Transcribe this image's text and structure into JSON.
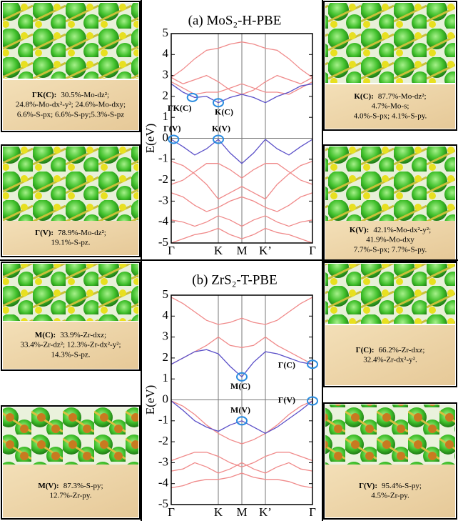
{
  "chart_data": [
    {
      "type": "line",
      "title": "(a) MoS₂-H-PBE",
      "y_label": "E(eV)",
      "x": [
        0,
        0.25,
        0.5,
        0.75,
        1,
        1.25,
        1.5,
        1.75,
        2,
        2.25,
        2.5,
        2.75,
        3
      ],
      "xlim": [
        0,
        3
      ],
      "xticks": [
        {
          "value": 0,
          "label": "Γ"
        },
        {
          "value": 1,
          "label": "K"
        },
        {
          "value": 1.5,
          "label": "M"
        },
        {
          "value": 2,
          "label": "K’"
        },
        {
          "value": 3,
          "label": "Γ"
        }
      ],
      "ylim": [
        -5,
        5
      ],
      "yticks": [
        -5,
        -4,
        -3,
        -2,
        -1,
        0,
        1,
        2,
        3,
        4,
        5
      ],
      "series": [
        {
          "color": "#f08a8a",
          "values": [
            2.9,
            3.3,
            3.8,
            4.2,
            4.3,
            4.5,
            4.6,
            4.5,
            4.3,
            4.2,
            3.8,
            3.3,
            2.9
          ]
        },
        {
          "color": "#f08a8a",
          "values": [
            2.9,
            2.6,
            2.8,
            3.0,
            2.7,
            2.3,
            2.1,
            2.3,
            2.7,
            3.0,
            2.8,
            2.6,
            2.9
          ]
        },
        {
          "color": "#f08a8a",
          "values": [
            2.7,
            2.4,
            2.1,
            2.2,
            2.2,
            2.4,
            2.6,
            2.4,
            2.2,
            2.2,
            2.1,
            2.4,
            2.7
          ]
        },
        {
          "color": "#f08a8a",
          "values": [
            -1.1,
            -1.3,
            -1.7,
            -2.2,
            -2.9,
            -2.6,
            -2.3,
            -2.6,
            -2.9,
            -2.2,
            -1.7,
            -1.3,
            -1.1
          ]
        },
        {
          "color": "#f08a8a",
          "values": [
            -2.2,
            -2.0,
            -1.6,
            -1.2,
            -1.2,
            -1.5,
            -1.9,
            -1.5,
            -1.2,
            -1.2,
            -1.6,
            -2.0,
            -2.2
          ]
        },
        {
          "color": "#f08a8a",
          "values": [
            -2.6,
            -2.8,
            -3.2,
            -3.5,
            -3.3,
            -3.0,
            -2.8,
            -3.0,
            -3.3,
            -3.5,
            -3.2,
            -2.8,
            -2.6
          ]
        },
        {
          "color": "#f08a8a",
          "values": [
            -3.9,
            -4.0,
            -4.2,
            -4.0,
            -3.7,
            -3.9,
            -4.2,
            -3.9,
            -3.7,
            -4.0,
            -4.2,
            -4.0,
            -3.9
          ]
        },
        {
          "color": "#f08a8a",
          "values": [
            -5,
            -4.8,
            -4.6,
            -4.5,
            -4.3,
            -4.6,
            -4.8,
            -4.6,
            -4.3,
            -4.5,
            -4.6,
            -4.8,
            -5
          ]
        },
        {
          "color": "#5a4fc8",
          "values": [
            2.6,
            2.2,
            1.95,
            2.0,
            1.7,
            1.95,
            2.1,
            1.95,
            1.7,
            2.0,
            2.2,
            2.5,
            2.6
          ]
        },
        {
          "color": "#5a4fc8",
          "values": [
            -0.05,
            -0.4,
            -0.8,
            -0.5,
            -0.05,
            -0.7,
            -1.2,
            -0.7,
            -0.05,
            -0.5,
            -0.8,
            -0.4,
            -0.05
          ]
        }
      ],
      "annotations": [
        {
          "text": "ΓK(C)",
          "x": 0.45,
          "y": 1.95
        },
        {
          "text": "K(C)",
          "x": 1,
          "y": 1.7
        },
        {
          "text": "Γ(V)",
          "x": 0.05,
          "y": -0.05
        },
        {
          "text": "K(V)",
          "x": 1,
          "y": -0.05
        }
      ]
    },
    {
      "type": "line",
      "title": "(b) ZrS₂-T-PBE",
      "y_label": "E(eV)",
      "x": [
        0,
        0.25,
        0.5,
        0.75,
        1,
        1.25,
        1.5,
        1.75,
        2,
        2.25,
        2.5,
        2.75,
        3
      ],
      "xlim": [
        0,
        3
      ],
      "xticks": [
        {
          "value": 0,
          "label": "Γ"
        },
        {
          "value": 1,
          "label": "K"
        },
        {
          "value": 1.5,
          "label": "M"
        },
        {
          "value": 2,
          "label": "K’"
        },
        {
          "value": 3,
          "label": "Γ"
        }
      ],
      "ylim": [
        -5,
        5
      ],
      "yticks": [
        -5,
        -4,
        -3,
        -2,
        -1,
        0,
        1,
        2,
        3,
        4,
        5
      ],
      "series": [
        {
          "color": "#f08a8a",
          "values": [
            4.9,
            4.6,
            4.2,
            3.8,
            3.6,
            3.7,
            3.9,
            3.7,
            3.6,
            3.8,
            4.2,
            4.6,
            4.9
          ]
        },
        {
          "color": "#f08a8a",
          "values": [
            1.7,
            2.0,
            2.3,
            2.6,
            3.0,
            2.6,
            2.5,
            2.6,
            3.0,
            2.6,
            2.3,
            2.0,
            1.7
          ]
        },
        {
          "color": "#f08a8a",
          "values": [
            -0.05,
            -0.3,
            -0.7,
            -1.2,
            -1.6,
            -1.9,
            -2.1,
            -1.9,
            -1.6,
            -1.2,
            -0.7,
            -0.3,
            -0.05
          ]
        },
        {
          "color": "#f08a8a",
          "values": [
            -2.9,
            -2.7,
            -2.5,
            -2.5,
            -2.7,
            -3.0,
            -3.2,
            -3.0,
            -2.7,
            -2.5,
            -2.5,
            -2.7,
            -2.9
          ]
        },
        {
          "color": "#f08a8a",
          "values": [
            -3.4,
            -3.3,
            -3.0,
            -3.2,
            -3.5,
            -3.3,
            -3.0,
            -3.3,
            -3.5,
            -3.2,
            -3.0,
            -3.3,
            -3.4
          ]
        },
        {
          "color": "#f08a8a",
          "values": [
            -4.2,
            -4.1,
            -3.9,
            -3.8,
            -3.8,
            -3.7,
            -3.5,
            -3.7,
            -3.8,
            -3.8,
            -3.9,
            -4.1,
            -4.2
          ]
        },
        {
          "color": "#5a4fc8",
          "values": [
            1.7,
            2.0,
            2.3,
            2.4,
            2.2,
            1.6,
            1.1,
            1.8,
            2.3,
            2.2,
            2.0,
            1.8,
            1.7
          ]
        },
        {
          "color": "#5a4fc8",
          "values": [
            -0.05,
            -0.5,
            -1.0,
            -1.3,
            -1.5,
            -1.2,
            -1.0,
            -1.3,
            -1.6,
            -1.3,
            -0.9,
            -0.5,
            -0.05
          ]
        }
      ],
      "annotations": [
        {
          "text": "M(C)",
          "x": 1.5,
          "y": 1.1
        },
        {
          "text": "M(V)",
          "x": 1.5,
          "y": -1.0
        },
        {
          "text": "Γ(C)",
          "x": 3,
          "y": 1.7
        },
        {
          "text": "Γ(V)",
          "x": 3,
          "y": -0.05
        }
      ]
    }
  ],
  "panels": [
    {
      "label": "ΓK(C):",
      "lines": [
        "30.5%-Mo-dz²;",
        "24.8%-Mo-dx²-y²; 24.6%-Mo-dxy;",
        "6.6%-S-px; 6.6%-S-py;5.3%-S-pz"
      ]
    },
    {
      "label": "Γ(V):",
      "lines": [
        "78.9%-Mo-dz²;",
        "19.1%-S-pz."
      ]
    },
    {
      "label": "K(C):",
      "lines": [
        "87.7%-Mo-dz²;",
        "4.7%-Mo-s;",
        "4.0%-S-px; 4.1%-S-py."
      ]
    },
    {
      "label": "K(V):",
      "lines": [
        "42.1%-Mo-dx²-y²;",
        "41.9%-Mo-dxy",
        "7.7%-S-px; 7.7%-S-py."
      ]
    },
    {
      "label": "M(C):",
      "lines": [
        "33.9%-Zr-dxz;",
        "33.4%-Zr-dz²; 12.3%-Zr-dx²-y²;",
        "14.3%-S-pz."
      ]
    },
    {
      "label": "M(V):",
      "lines": [
        "87.3%-S-py;",
        "12.7%-Zr-py."
      ]
    },
    {
      "label": "Γ(C):",
      "lines": [
        "66.2%-Zr-dxz;",
        "32.4%-Zr-dx²-y²."
      ]
    },
    {
      "label": "Γ(V):",
      "lines": [
        "95.4%-S-py;",
        "4.5%-Zr-py."
      ]
    }
  ]
}
